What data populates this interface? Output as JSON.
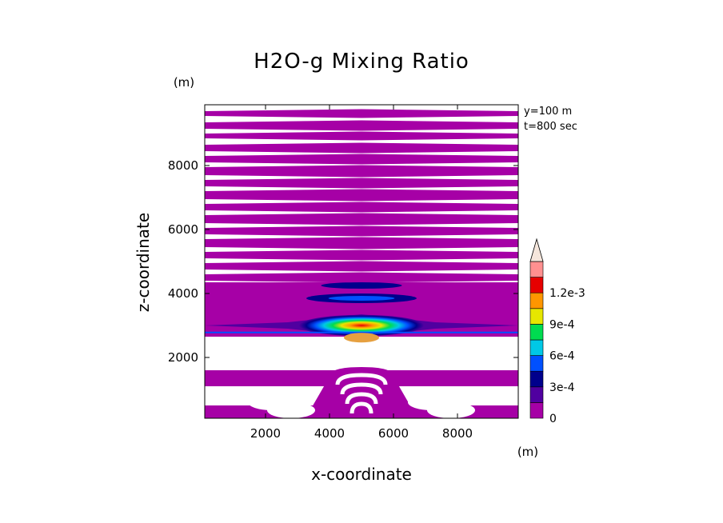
{
  "chart_data": {
    "type": "heatmap",
    "title": "H2O-g Mixing Ratio",
    "xlabel": "x-coordinate",
    "ylabel": "z-coordinate",
    "x_unit": "(m)",
    "y_unit": "(m)",
    "annotations": [
      "y=100 m",
      "t=800 sec"
    ],
    "xlim": [
      100,
      9900
    ],
    "ylim": [
      100,
      9900
    ],
    "x_ticks": [
      2000,
      4000,
      6000,
      8000
    ],
    "y_ticks": [
      2000,
      4000,
      6000,
      8000
    ],
    "colorbar": {
      "levels": [
        0,
        0.00015,
        0.0003,
        0.00045,
        0.0006,
        0.00075,
        0.0009,
        0.00105,
        0.0012,
        0.00135
      ],
      "colors": [
        "#a600a6",
        "#5000a0",
        "#00008c",
        "#0050ff",
        "#00c8e6",
        "#00dc50",
        "#e6e600",
        "#ff9600",
        "#e60000",
        "#ff9090",
        "#f5e6dc"
      ],
      "tick_values": [
        0,
        0.0003,
        0.0006,
        0.0009,
        0.0012
      ],
      "tick_labels": [
        "0",
        "3e-4",
        "6e-4",
        "9e-4",
        "1.2e-3"
      ],
      "extend": "max"
    },
    "field": {
      "background_color": "#ffffff",
      "fill_color": "#a600a6",
      "stripe_bands_z": [
        [
          9550,
          9700
        ],
        [
          9150,
          9350
        ],
        [
          8850,
          9000
        ],
        [
          8450,
          8650
        ],
        [
          8100,
          8300
        ],
        [
          7700,
          7950
        ],
        [
          7350,
          7550
        ],
        [
          6950,
          7200
        ],
        [
          6600,
          6800
        ],
        [
          6200,
          6450
        ],
        [
          5850,
          6050
        ],
        [
          5450,
          5700
        ],
        [
          5100,
          5300
        ],
        [
          4750,
          4950
        ],
        [
          4400,
          4600
        ]
      ],
      "plume": {
        "x_center": 5000,
        "z_center": 3000,
        "half_width_x": 2300,
        "half_height_z": 350,
        "peak_value": 0.00115
      },
      "lower_bands_z": [
        [
          1100,
          1600
        ],
        [
          100,
          500
        ]
      ],
      "lower_dome": {
        "x_center": 5000,
        "z_top": 1700,
        "half_width_x": 1000
      }
    }
  }
}
